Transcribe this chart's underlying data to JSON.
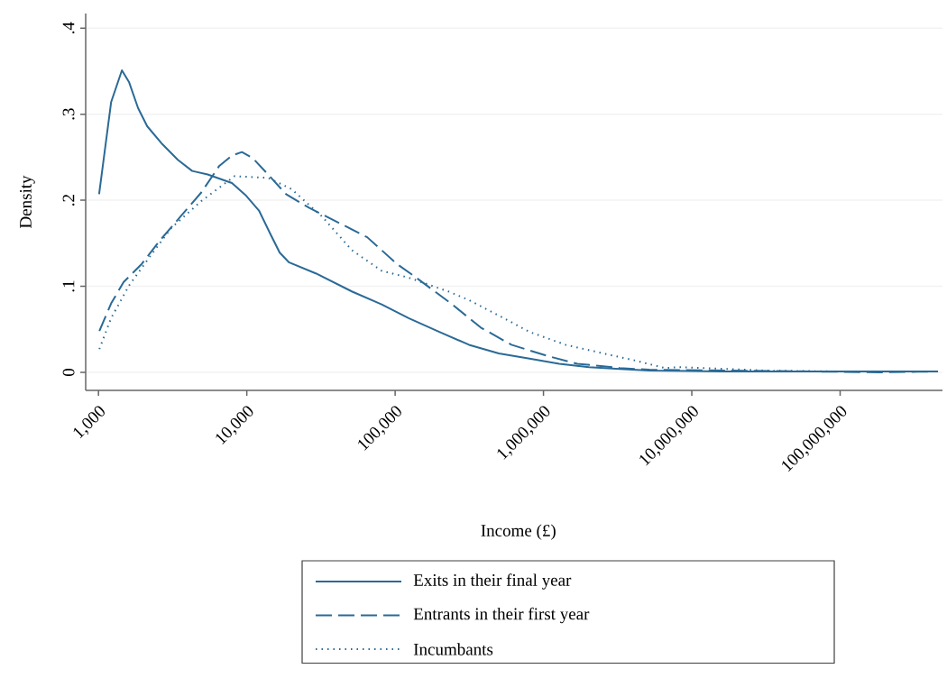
{
  "chart_data": {
    "type": "line",
    "xlabel": "Income (£)",
    "ylabel": "Density",
    "log": "x",
    "xlim": [
      820,
      490000000
    ],
    "ylim": [
      -0.021,
      0.417
    ],
    "xticks": [
      {
        "value": 1000,
        "label": "1,000"
      },
      {
        "value": 10000,
        "label": "10,000"
      },
      {
        "value": 100000,
        "label": "100,000"
      },
      {
        "value": 1000000,
        "label": "1,000,000"
      },
      {
        "value": 10000000,
        "label": "10,000,000"
      },
      {
        "value": 100000000,
        "label": "100,000,000"
      }
    ],
    "yticks": [
      0,
      {
        "value": 0.1,
        "label": ".1"
      },
      {
        "value": 0.2,
        "label": ".2"
      },
      {
        "value": 0.3,
        "label": ".3"
      },
      {
        "value": 0.4,
        "label": ".4"
      }
    ],
    "grid": "y",
    "legend": "bottom",
    "marker": "none",
    "series": [
      {
        "name": "Exits in their final year",
        "color": "#2a6a96",
        "line_style": "solid",
        "x": [
          1010,
          1217,
          1439,
          1610,
          1851,
          2130,
          2700,
          3427,
          4285,
          5445,
          7943,
          9930,
          12080,
          14490,
          16670,
          19190,
          29180,
          51050,
          81100,
          123300,
          198600,
          314800,
          500000,
          805000,
          1277000,
          2028000,
          3266000,
          5176000,
          15880000,
          457000000
        ],
        "values": [
          0.207,
          0.314,
          0.351,
          0.337,
          0.307,
          0.286,
          0.265,
          0.247,
          0.234,
          0.23,
          0.22,
          0.205,
          0.188,
          0.16,
          0.139,
          0.128,
          0.115,
          0.094,
          0.079,
          0.063,
          0.047,
          0.032,
          0.022,
          0.016,
          0.01,
          0.006,
          0.004,
          0.002,
          0.001,
          0.001
        ]
      },
      {
        "name": "Entrants in their first year",
        "color": "#2a6a96",
        "line_style": "dashed",
        "x": [
          1014,
          1217,
          1479,
          1959,
          2588,
          3573,
          4932,
          6531,
          7943,
          9268,
          10960,
          13900,
          18400,
          26440,
          42560,
          64860,
          102800,
          136100,
          238200,
          378000,
          608000,
          1064000,
          1690000,
          3266000,
          5176000,
          64400000,
          183700000,
          457000000
        ],
        "values": [
          0.048,
          0.08,
          0.105,
          0.126,
          0.153,
          0.181,
          0.209,
          0.24,
          0.252,
          0.256,
          0.249,
          0.23,
          0.207,
          0.191,
          0.173,
          0.157,
          0.126,
          0.111,
          0.08,
          0.052,
          0.032,
          0.019,
          0.01,
          0.005,
          0.003,
          0.001,
          0.0,
          0.001
        ]
      },
      {
        "name": "Incumbants",
        "color": "#2a6a96",
        "line_style": "dotted",
        "x": [
          1014,
          1217,
          1610,
          2253,
          3105,
          4932,
          8279,
          13900,
          20000,
          32190,
          51050,
          81100,
          123300,
          228400,
          314800,
          500000,
          805000,
          1409000,
          2685000,
          4083000,
          6577000,
          8222000,
          32000000,
          98000000
        ],
        "values": [
          0.027,
          0.063,
          0.101,
          0.136,
          0.168,
          0.199,
          0.228,
          0.226,
          0.213,
          0.181,
          0.142,
          0.118,
          0.11,
          0.094,
          0.084,
          0.066,
          0.047,
          0.032,
          0.021,
          0.014,
          0.005,
          0.006,
          0.002,
          0.001
        ]
      }
    ]
  }
}
